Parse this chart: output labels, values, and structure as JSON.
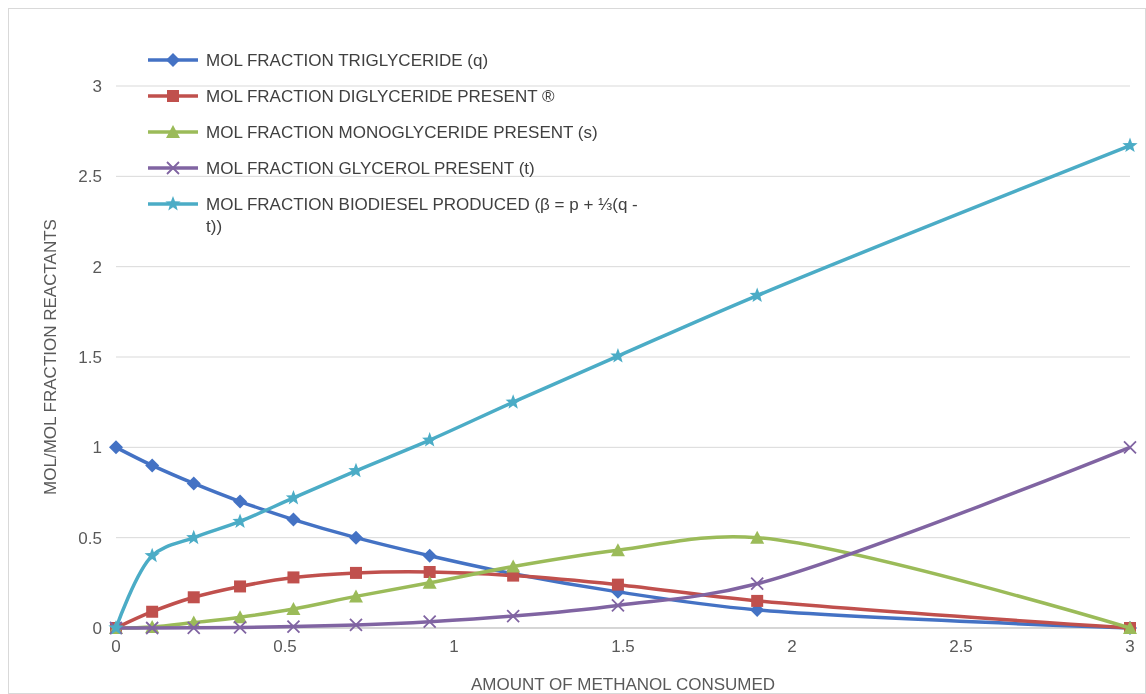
{
  "chart_data": {
    "type": "line",
    "xlabel": "AMOUNT OF METHANOL CONSUMED",
    "ylabel": "MOL/MOL FRACTION REACTANTS",
    "x": [
      0,
      0.107,
      0.23,
      0.367,
      0.525,
      0.71,
      0.928,
      1.175,
      1.485,
      1.897,
      3
    ],
    "xlim": [
      0,
      3
    ],
    "xticks": [
      0,
      0.5,
      1,
      1.5,
      2,
      2.5,
      3
    ],
    "ylim": [
      0,
      3
    ],
    "yticks": [
      0,
      0.5,
      1,
      1.5,
      2,
      2.5,
      3
    ],
    "grid": "y",
    "legend": "top left",
    "series": [
      {
        "name": "MOL FRACTION TRIGLYCERIDE (q)",
        "color": "#4472c4",
        "marker": "diamond",
        "values": [
          1,
          0.9,
          0.8,
          0.7,
          0.6,
          0.5,
          0.4,
          0.3,
          0.2,
          0.1,
          0
        ]
      },
      {
        "name": "MOL FRACTION DIGLYCERIDE PRESENT ®",
        "color": "#c0504d",
        "marker": "square",
        "values": [
          0,
          0.09,
          0.17,
          0.23,
          0.28,
          0.305,
          0.31,
          0.29,
          0.24,
          0.15,
          0
        ]
      },
      {
        "name": "MOL FRACTION MONOGLYCERIDE PRESENT (s)",
        "color": "#9bbb59",
        "marker": "triangle",
        "values": [
          0,
          0.005,
          0.03,
          0.06,
          0.105,
          0.175,
          0.25,
          0.34,
          0.43,
          0.5,
          0
        ]
      },
      {
        "name": "MOL FRACTION GLYCEROL PRESENT (t)",
        "color": "#8064a2",
        "marker": "cross",
        "values": [
          0,
          0,
          0.001,
          0.003,
          0.008,
          0.017,
          0.035,
          0.066,
          0.125,
          0.245,
          1
        ]
      },
      {
        "name": "MOL FRACTION BIODIESEL PRODUCED  (β = p + ⅓(q - t))",
        "color": "#4bacc6",
        "marker": "star",
        "values": [
          0,
          0.4,
          0.5,
          0.59,
          0.72,
          0.87,
          1.04,
          1.25,
          1.505,
          1.84,
          2.67
        ]
      }
    ]
  }
}
